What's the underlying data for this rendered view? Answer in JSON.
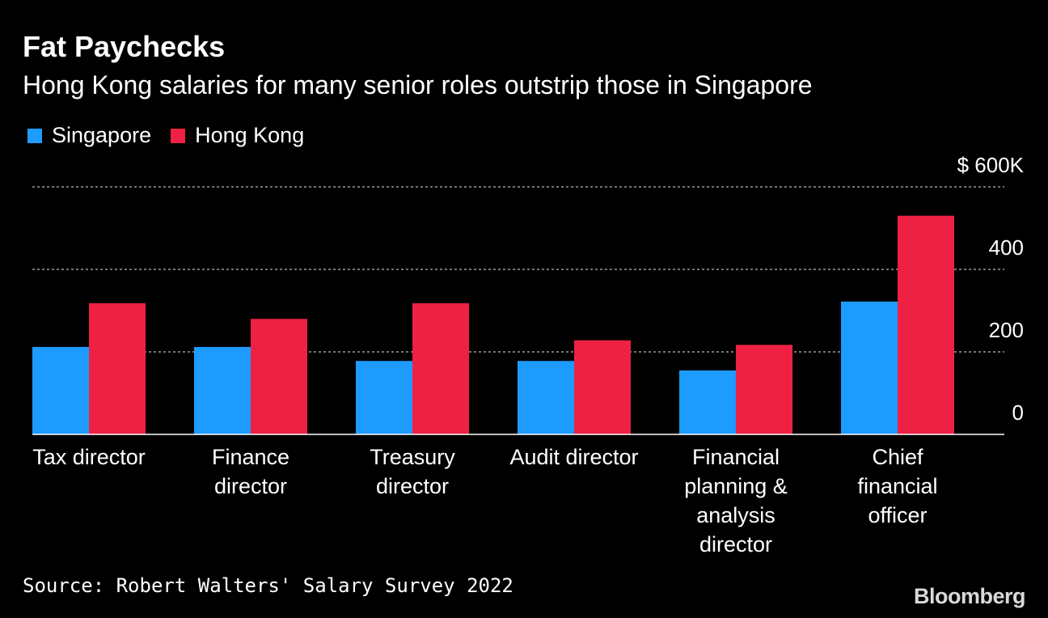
{
  "header": {
    "title": "Fat Paychecks",
    "subtitle": "Hong Kong salaries for many senior roles outstrip those in Singapore"
  },
  "legend": [
    {
      "label": "Singapore",
      "color": "#1e9bff"
    },
    {
      "label": "Hong Kong",
      "color": "#ee2144"
    }
  ],
  "chart_data": {
    "type": "bar",
    "categories": [
      [
        "Tax director"
      ],
      [
        "Finance",
        "director"
      ],
      [
        "Treasury",
        "director"
      ],
      [
        "Audit director"
      ],
      [
        "Financial",
        "planning &",
        "analysis",
        "director"
      ],
      [
        "Chief",
        "financial",
        "officer"
      ]
    ],
    "series": [
      {
        "name": "Singapore",
        "color": "#1e9bff",
        "values": [
          212,
          212,
          178,
          178,
          155,
          322
        ]
      },
      {
        "name": "Hong Kong",
        "color": "#ee2144",
        "values": [
          318,
          280,
          318,
          228,
          217,
          530
        ]
      }
    ],
    "ylim": [
      0,
      600
    ],
    "yticks": [
      {
        "value": 0,
        "label": "0"
      },
      {
        "value": 200,
        "label": "200"
      },
      {
        "value": 400,
        "label": "400"
      },
      {
        "value": 600,
        "label": "$ 600K"
      }
    ],
    "grid": true,
    "legend_position": "top-left"
  },
  "footer": {
    "source": "Source: Robert Walters' Salary Survey 2022",
    "brand": "Bloomberg"
  }
}
